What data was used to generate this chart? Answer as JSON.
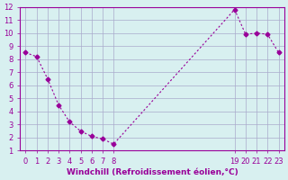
{
  "x": [
    0,
    1,
    2,
    3,
    4,
    5,
    6,
    7,
    8,
    19,
    20,
    21,
    22,
    23
  ],
  "y": [
    8.5,
    8.2,
    6.5,
    4.5,
    3.2,
    2.5,
    2.1,
    1.9,
    1.5,
    11.8,
    9.9,
    10.0,
    9.9,
    8.5
  ],
  "line_color": "#990099",
  "marker": "D",
  "marker_size": 2.5,
  "bg_color": "#d8f0f0",
  "grid_color": "#aaaacc",
  "axis_color": "#990099",
  "tick_label_color": "#990099",
  "xlabel": "Windchill (Refroidissement éolien,°C)",
  "xlabel_color": "#990099",
  "ylabel_color": "#990099",
  "xlim": [
    -0.5,
    23.5
  ],
  "ylim": [
    1,
    12
  ],
  "xticks": [
    0,
    1,
    2,
    3,
    4,
    5,
    6,
    7,
    8,
    19,
    20,
    21,
    22,
    23
  ],
  "yticks": [
    1,
    2,
    3,
    4,
    5,
    6,
    7,
    8,
    9,
    10,
    11,
    12
  ],
  "title": "",
  "font_size": 6,
  "xlabel_fontsize": 6.5
}
